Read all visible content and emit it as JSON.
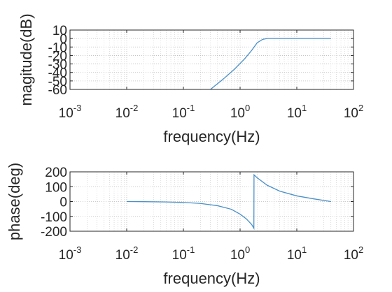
{
  "chart_data": [
    {
      "type": "line",
      "xlabel": "frequency(Hz)",
      "ylabel": "magitude(dB)",
      "xscale": "log",
      "xlim": [
        0.001,
        100
      ],
      "ylim": [
        -60,
        10
      ],
      "yticks": [
        "10",
        "0",
        "-10",
        "-20",
        "-30",
        "-40",
        "-50",
        "-60"
      ],
      "ytick_values": [
        10,
        0,
        -10,
        -20,
        -30,
        -40,
        -50,
        -60
      ],
      "xticks": [
        {
          "base": "10",
          "exp": "-3",
          "value": 0.001
        },
        {
          "base": "10",
          "exp": "-2",
          "value": 0.01
        },
        {
          "base": "10",
          "exp": "-1",
          "value": 0.1
        },
        {
          "base": "10",
          "exp": "0",
          "value": 1
        },
        {
          "base": "10",
          "exp": "1",
          "value": 10
        },
        {
          "base": "10",
          "exp": "2",
          "value": 100
        }
      ],
      "grid": true,
      "series": [
        {
          "color": "#4a90c8",
          "x": [
            0.3,
            0.5,
            0.8,
            1.2,
            1.6,
            2.0,
            2.5,
            3.0,
            5.0,
            10.0,
            40.0
          ],
          "y": [
            -60,
            -48,
            -36,
            -24,
            -14,
            -5,
            -1,
            0,
            0,
            0,
            0
          ]
        }
      ]
    },
    {
      "type": "line",
      "xlabel": "frequency(Hz)",
      "ylabel": "phase(deg)",
      "xscale": "log",
      "xlim": [
        0.001,
        100
      ],
      "ylim": [
        -200,
        200
      ],
      "yticks": [
        "200",
        "100",
        "0",
        "-100",
        "-200"
      ],
      "ytick_values": [
        200,
        100,
        0,
        -100,
        -200
      ],
      "xticks": [
        {
          "base": "10",
          "exp": "-3",
          "value": 0.001
        },
        {
          "base": "10",
          "exp": "-2",
          "value": 0.01
        },
        {
          "base": "10",
          "exp": "-1",
          "value": 0.1
        },
        {
          "base": "10",
          "exp": "0",
          "value": 1
        },
        {
          "base": "10",
          "exp": "1",
          "value": 10
        },
        {
          "base": "10",
          "exp": "2",
          "value": 100
        }
      ],
      "grid": true,
      "series": [
        {
          "color": "#4a90c8",
          "x": [
            0.01,
            0.02,
            0.05,
            0.1,
            0.2,
            0.4,
            0.7,
            1.0,
            1.3,
            1.6,
            1.75,
            1.76,
            2.0,
            3.0,
            5.0,
            10.0,
            20.0,
            40.0
          ],
          "y": [
            0,
            -1,
            -3,
            -6,
            -13,
            -28,
            -52,
            -85,
            -118,
            -155,
            -180,
            180,
            160,
            110,
            70,
            38,
            18,
            0
          ]
        }
      ]
    }
  ]
}
